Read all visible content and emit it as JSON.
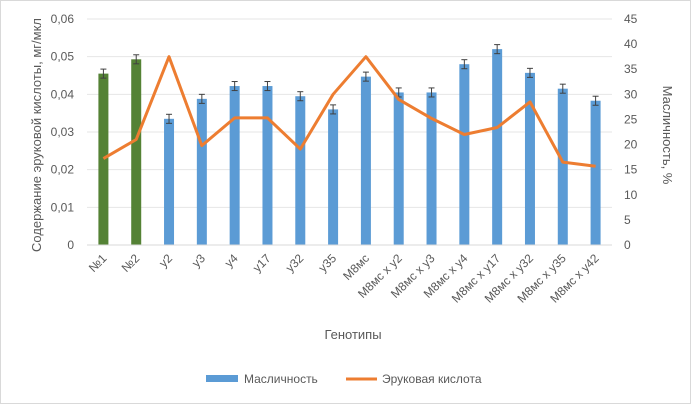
{
  "chart_data": {
    "type": "bar",
    "xlabel": "Генотипы",
    "ylabel_left": "Содержание эруковой кислоты, мг/мкл",
    "ylabel_right": "Масличность, %",
    "categories": [
      "№1",
      "№2",
      "y2",
      "y3",
      "y4",
      "y17",
      "y32",
      "y35",
      "М8мс",
      "М8мс x y2",
      "М8мс x y3",
      "М8мс x y4",
      "М8мс x y17",
      "М8мс x y32",
      "М8мс x y35",
      "М8мс x y42"
    ],
    "left_axis": {
      "min": 0,
      "max": 0.06,
      "step": 0.01,
      "tick_labels": [
        "0",
        "0,01",
        "0,02",
        "0,03",
        "0,04",
        "0,05",
        "0,06"
      ]
    },
    "right_axis": {
      "min": 0,
      "max": 45,
      "step": 5,
      "tick_labels": [
        "0",
        "5",
        "10",
        "15",
        "20",
        "25",
        "30",
        "35",
        "40",
        "45"
      ]
    },
    "series": [
      {
        "name": "Масличность",
        "kind": "bar",
        "axis": "left",
        "color": "#5b9bd5",
        "highlight_color": "#548235",
        "highlight_indices": [
          0,
          1
        ],
        "values": [
          0.0455,
          0.0493,
          0.0335,
          0.0388,
          0.0422,
          0.0422,
          0.0395,
          0.036,
          0.0447,
          0.0405,
          0.0405,
          0.048,
          0.052,
          0.0457,
          0.0415,
          0.0383
        ],
        "errors": [
          0.0012,
          0.0012,
          0.0012,
          0.0012,
          0.0012,
          0.0012,
          0.0012,
          0.0012,
          0.0012,
          0.0012,
          0.0012,
          0.0012,
          0.0012,
          0.0012,
          0.0012,
          0.0012
        ]
      },
      {
        "name": "Эруковая кислота",
        "kind": "line",
        "axis": "right",
        "color": "#ed7d31",
        "values": [
          17.2,
          21.0,
          37.5,
          19.8,
          25.3,
          25.3,
          19.1,
          30.0,
          37.5,
          29.0,
          25.2,
          22.0,
          23.4,
          28.5,
          16.5,
          15.7
        ]
      }
    ],
    "grid": true,
    "legend_position": "bottom"
  }
}
